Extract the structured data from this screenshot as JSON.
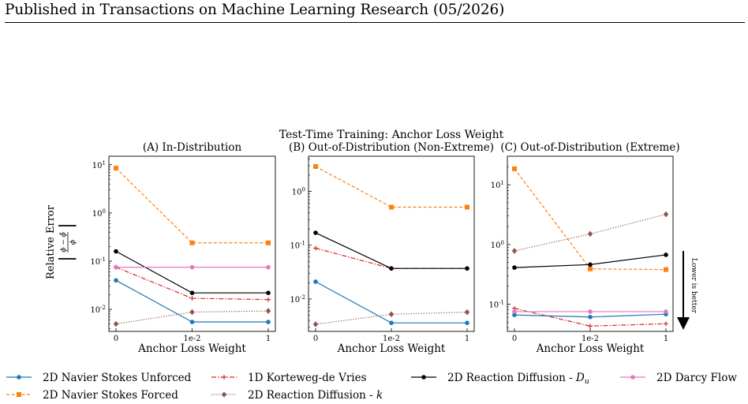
{
  "header": {
    "text": "Published in Transactions on Machine Learning Research (05/2026)"
  },
  "figure": {
    "suptitle": "Test-Time Training: Anchor Loss Weight",
    "ylabel": "Relative Error",
    "ylabel_formula": {
      "abs_open": "|",
      "numerator": "ϕ − ϕ̂",
      "denominator": "ϕ",
      "abs_close": "|"
    },
    "annotation": "Lower is better"
  },
  "colors": {
    "navier_unforced": "#1f77b4",
    "navier_forced": "#ff7f0e",
    "kdv": "#d62728",
    "reaction_k": "#8c564b",
    "reaction_du": "#000000",
    "darcy": "#e377c2"
  },
  "legend": [
    {
      "key": "navier_unforced",
      "label": "2D Navier Stokes Unforced",
      "marker": "circle",
      "dash": "solid"
    },
    {
      "key": "navier_forced",
      "label": "2D Navier Stokes Forced",
      "marker": "square",
      "dash": "dashed"
    },
    {
      "key": "kdv",
      "label": "1D Korteweg-de Vries",
      "marker": "plus",
      "dash": "dashdot"
    },
    {
      "key": "reaction_k",
      "label": "2D Reaction Diffusion - ",
      "label_math": "k",
      "marker": "diamond",
      "dash": "dotted"
    },
    {
      "key": "reaction_du",
      "label": "2D Reaction Diffusion - ",
      "label_math": "D",
      "label_sub": "u",
      "marker": "circle",
      "dash": "solid"
    },
    {
      "key": "darcy",
      "label": "2D Darcy Flow",
      "marker": "circle",
      "dash": "solid"
    }
  ],
  "chart_data": [
    {
      "type": "line",
      "title": "(A) In-Distribution",
      "xlabel": "Anchor Loss Weight",
      "categories": [
        "0",
        "1e-2",
        "1"
      ],
      "yscale": "log",
      "ylim": [
        0.0035,
        15
      ],
      "yticks": [
        "10^-2",
        "10^-1",
        "10^0",
        "10^1"
      ],
      "series": [
        {
          "name": "2D Navier Stokes Unforced",
          "key": "navier_unforced",
          "values": [
            0.04,
            0.0055,
            0.0055
          ]
        },
        {
          "name": "2D Navier Stokes Forced",
          "key": "navier_forced",
          "values": [
            8.5,
            0.24,
            0.24
          ]
        },
        {
          "name": "1D Korteweg-de Vries",
          "key": "kdv",
          "values": [
            0.075,
            0.017,
            0.016
          ]
        },
        {
          "name": "2D Reaction Diffusion - k",
          "key": "reaction_k",
          "values": [
            0.005,
            0.0088,
            0.0093
          ]
        },
        {
          "name": "2D Reaction Diffusion - Du",
          "key": "reaction_du",
          "values": [
            0.16,
            0.022,
            0.022
          ]
        },
        {
          "name": "2D Darcy Flow",
          "key": "darcy",
          "values": [
            0.075,
            0.075,
            0.075
          ]
        }
      ]
    },
    {
      "type": "line",
      "title": "(B) Out-of-Distribution (Non-Extreme)",
      "xlabel": "Anchor Loss Weight",
      "categories": [
        "0",
        "1e-2",
        "1"
      ],
      "yscale": "log",
      "ylim": [
        0.0025,
        4.5
      ],
      "yticks": [
        "10^-2",
        "10^-1",
        "10^0"
      ],
      "series": [
        {
          "name": "2D Navier Stokes Unforced",
          "key": "navier_unforced",
          "values": [
            0.021,
            0.0036,
            0.0036
          ]
        },
        {
          "name": "2D Navier Stokes Forced",
          "key": "navier_forced",
          "values": [
            2.9,
            0.51,
            0.51
          ]
        },
        {
          "name": "1D Korteweg-de Vries",
          "key": "kdv",
          "values": [
            0.088,
            0.037,
            0.037
          ]
        },
        {
          "name": "2D Reaction Diffusion - k",
          "key": "reaction_k",
          "values": [
            0.0034,
            0.0052,
            0.0057
          ]
        },
        {
          "name": "2D Reaction Diffusion - Du",
          "key": "reaction_du",
          "values": [
            0.17,
            0.037,
            0.037
          ]
        },
        {
          "name": "2D Darcy Flow",
          "key": "darcy",
          "values": [
            null,
            null,
            null
          ]
        }
      ]
    },
    {
      "type": "line",
      "title": "(C) Out-of-Distribution (Extreme)",
      "xlabel": "Anchor Loss Weight",
      "categories": [
        "0",
        "1e-2",
        "1"
      ],
      "yscale": "log",
      "ylim": [
        0.035,
        30
      ],
      "yticks": [
        "10^-1",
        "10^0",
        "10^1"
      ],
      "series": [
        {
          "name": "2D Navier Stokes Unforced",
          "key": "navier_unforced",
          "values": [
            0.066,
            0.061,
            0.068
          ]
        },
        {
          "name": "2D Navier Stokes Forced",
          "key": "navier_forced",
          "values": [
            18.5,
            0.39,
            0.38
          ]
        },
        {
          "name": "1D Korteweg-de Vries",
          "key": "kdv",
          "values": [
            0.085,
            0.043,
            0.047
          ]
        },
        {
          "name": "2D Reaction Diffusion - k",
          "key": "reaction_k",
          "values": [
            0.78,
            1.5,
            3.2
          ]
        },
        {
          "name": "2D Reaction Diffusion - Du",
          "key": "reaction_du",
          "values": [
            0.41,
            0.46,
            0.67
          ]
        },
        {
          "name": "2D Darcy Flow",
          "key": "darcy",
          "values": [
            0.075,
            0.075,
            0.075
          ]
        }
      ]
    }
  ]
}
